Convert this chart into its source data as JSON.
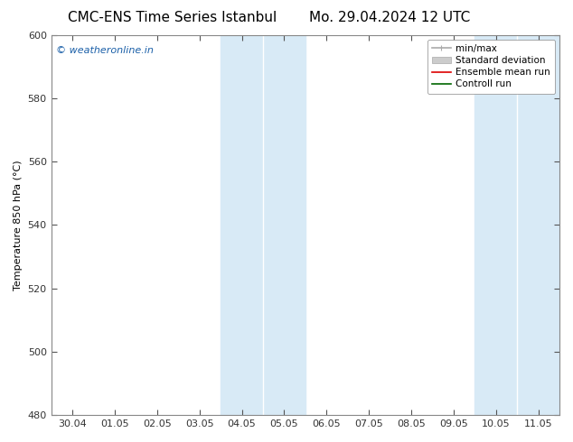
{
  "title_left": "CMC-ENS Time Series Istanbul",
  "title_right": "Mo. 29.04.2024 12 UTC",
  "ylabel": "Temperature 850 hPa (°C)",
  "ylim_bottom": 480,
  "ylim_top": 600,
  "yticks": [
    480,
    500,
    520,
    540,
    560,
    580,
    600
  ],
  "xtick_labels": [
    "30.04",
    "01.05",
    "02.05",
    "03.05",
    "04.05",
    "05.05",
    "06.05",
    "07.05",
    "08.05",
    "09.05",
    "10.05",
    "11.05"
  ],
  "xtick_positions": [
    0,
    1,
    2,
    3,
    4,
    5,
    6,
    7,
    8,
    9,
    10,
    11
  ],
  "xlim_left": -0.5,
  "xlim_right": 11.5,
  "shaded_regions": [
    {
      "x_start": 3.5,
      "x_end": 4.5,
      "color": "#daeaf7"
    },
    {
      "x_start": 4.5,
      "x_end": 5.5,
      "color": "#daeaf7"
    },
    {
      "x_start": 10.5,
      "x_end": 11.5,
      "color": "#daeaf7"
    }
  ],
  "shade_dividers": [
    4.5
  ],
  "watermark_text": "© weatheronline.in",
  "watermark_color": "#1a5fa8",
  "watermark_fontsize": 8,
  "background_color": "#ffffff",
  "plot_bg_color": "#ffffff",
  "legend_items": [
    {
      "label": "min/max",
      "color": "#aaaaaa",
      "lw": 1.2
    },
    {
      "label": "Standard deviation",
      "color": "#cccccc",
      "lw": 5
    },
    {
      "label": "Ensemble mean run",
      "color": "#dd0000",
      "lw": 1.2
    },
    {
      "label": "Controll run",
      "color": "#006600",
      "lw": 1.2
    }
  ],
  "title_fontsize": 11,
  "axis_label_fontsize": 8,
  "tick_fontsize": 8,
  "legend_fontsize": 7.5,
  "spine_color": "#888888",
  "tick_color": "#333333"
}
